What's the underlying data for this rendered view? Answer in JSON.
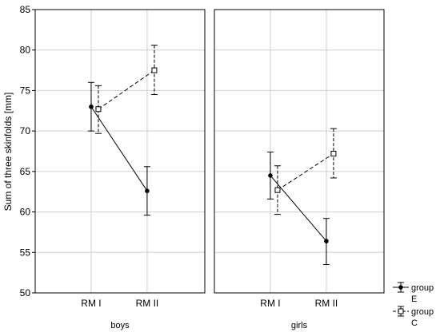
{
  "chart_data": {
    "type": "line",
    "ylabel": "Sum of three skinfolds [mm]",
    "ylim": [
      50,
      85
    ],
    "yticks": [
      50,
      55,
      60,
      65,
      70,
      75,
      80,
      85
    ],
    "categories": [
      "RM I",
      "RM II"
    ],
    "grid": true,
    "legend_position": "bottom-right",
    "panels": [
      {
        "label": "boys",
        "series": [
          {
            "name": "group E",
            "marker": "filled-circle",
            "line": "solid",
            "values": [
              73.0,
              62.6
            ],
            "lower": [
              70.0,
              59.6
            ],
            "upper": [
              76.0,
              65.6
            ]
          },
          {
            "name": "group C",
            "marker": "open-square",
            "line": "dashed",
            "values": [
              72.7,
              77.5
            ],
            "lower": [
              69.7,
              74.5
            ],
            "upper": [
              75.6,
              80.6
            ]
          }
        ]
      },
      {
        "label": "girls",
        "series": [
          {
            "name": "group E",
            "marker": "filled-circle",
            "line": "solid",
            "values": [
              64.5,
              56.4
            ],
            "lower": [
              61.6,
              53.5
            ],
            "upper": [
              67.4,
              59.2
            ]
          },
          {
            "name": "group C",
            "marker": "open-square",
            "line": "dashed",
            "values": [
              62.7,
              67.2
            ],
            "lower": [
              59.7,
              64.2
            ],
            "upper": [
              65.7,
              70.3
            ]
          }
        ]
      }
    ],
    "legend": [
      {
        "line1": "group",
        "line2": "E",
        "marker": "filled-circle",
        "line": "solid"
      },
      {
        "line1": "group",
        "line2": "C",
        "marker": "open-square",
        "line": "dashed"
      }
    ]
  }
}
